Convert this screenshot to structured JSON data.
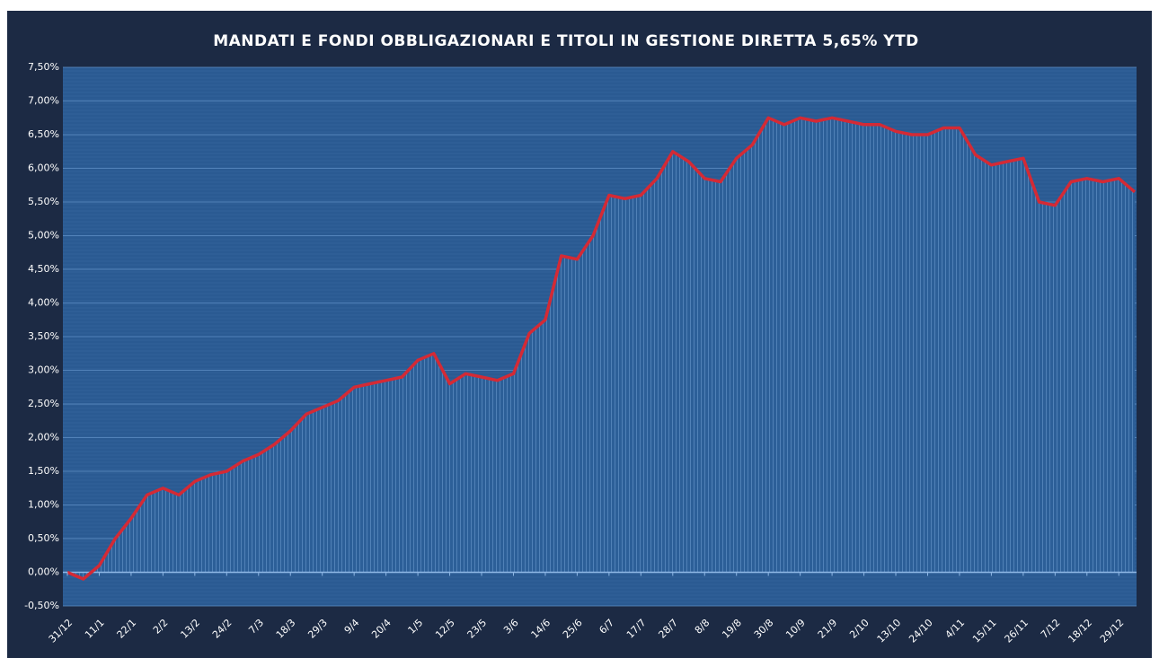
{
  "chart_data": {
    "type": "line",
    "title": "MANDATI  E FONDI OBBLIGAZIONARI  E TITOLI  IN  GESTIONE  DIRETTA  5,65%  YTD",
    "categories": [
      "31/12",
      null,
      "11/1",
      null,
      "22/1",
      null,
      "2/2",
      null,
      "13/2",
      null,
      "24/2",
      null,
      "7/3",
      null,
      "18/3",
      null,
      "29/3",
      null,
      "9/4",
      null,
      "20/4",
      null,
      "1/5",
      null,
      "12/5",
      null,
      "23/5",
      null,
      "3/6",
      null,
      "14/6",
      null,
      "25/6",
      null,
      "6/7",
      null,
      "17/7",
      null,
      "28/7",
      null,
      "8/8",
      null,
      "19/8",
      null,
      "30/8",
      null,
      "10/9",
      null,
      "21/9",
      null,
      "2/10",
      null,
      "13/10",
      null,
      "24/10",
      null,
      "4/11",
      null,
      "15/11",
      null,
      "26/11",
      null,
      "7/12",
      null,
      "18/12",
      null,
      "29/12",
      null
    ],
    "series": [
      {
        "name": "YTD",
        "color": "#d42a35",
        "values": [
          0.0,
          -0.1,
          0.1,
          0.5,
          0.8,
          1.15,
          1.25,
          1.15,
          1.35,
          1.45,
          1.5,
          1.65,
          1.75,
          1.9,
          2.1,
          2.35,
          2.45,
          2.55,
          2.75,
          2.8,
          2.85,
          2.9,
          3.15,
          3.25,
          2.8,
          2.95,
          2.9,
          2.85,
          2.95,
          3.55,
          3.75,
          4.7,
          4.65,
          5.0,
          5.6,
          5.55,
          5.6,
          5.85,
          6.25,
          6.1,
          5.85,
          5.8,
          6.15,
          6.35,
          6.75,
          6.65,
          6.75,
          6.7,
          6.75,
          6.7,
          6.65,
          6.65,
          6.55,
          6.5,
          6.5,
          6.6,
          6.6,
          6.2,
          6.05,
          6.1,
          6.15,
          5.5,
          5.45,
          5.8,
          5.85,
          5.8,
          5.85,
          5.65
        ]
      }
    ],
    "ylim": [
      -0.5,
      7.5
    ],
    "yticks": [
      {
        "value": -0.5,
        "label": "-0,50%"
      },
      {
        "value": 0,
        "label": "0,00%"
      },
      {
        "value": 0.5,
        "label": "0,50%"
      },
      {
        "value": 1,
        "label": "1,00%"
      },
      {
        "value": 1.5,
        "label": "1,50%"
      },
      {
        "value": 2,
        "label": "2,00%"
      },
      {
        "value": 2.5,
        "label": "2,50%"
      },
      {
        "value": 3,
        "label": "3,00%"
      },
      {
        "value": 3.5,
        "label": "3,50%"
      },
      {
        "value": 4,
        "label": "4,00%"
      },
      {
        "value": 4.5,
        "label": "4,50%"
      },
      {
        "value": 5,
        "label": "5,00%"
      },
      {
        "value": 5.5,
        "label": "5,50%"
      },
      {
        "value": 6,
        "label": "6,00%"
      },
      {
        "value": 6.5,
        "label": "6,50%"
      },
      {
        "value": 7,
        "label": "7,00%"
      },
      {
        "value": 7.5,
        "label": "7,50%"
      }
    ],
    "grid": true
  }
}
